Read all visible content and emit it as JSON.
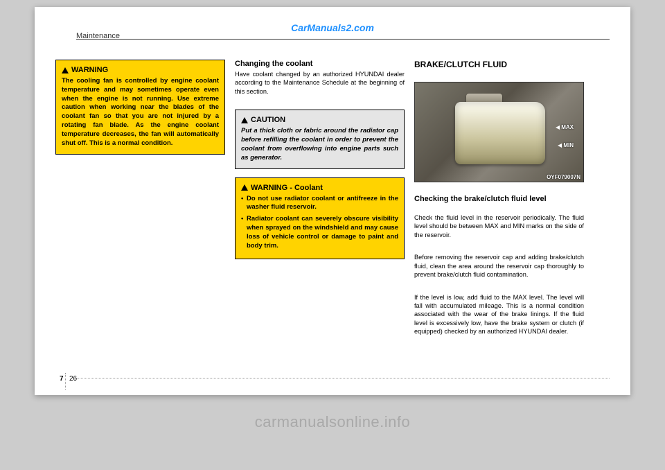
{
  "brand_url": "CarManuals2.com",
  "section_label": "Maintenance",
  "page_num_chapter": "7",
  "page_num_page": "26",
  "col1": {
    "warning1": {
      "title": "WARNING",
      "body": "The cooling fan is controlled by engine coolant temperature and may sometimes operate even when the engine is not running. Use extreme caution when working near the blades of the coolant fan so that you are not injured by a rotating fan blade. As the engine coolant temperature decreases, the fan will automatically shut off. This is a normal condition."
    }
  },
  "col2": {
    "changing_heading": "Changing the coolant",
    "changing_body": "Have coolant changed by an authorized HYUNDAI dealer according to the Maintenance Schedule at the beginning of this section.",
    "caution": {
      "title": "CAUTION",
      "body": "Put a thick cloth or fabric around the radiator cap before refilling the coolant in order to prevent the coolant from overflowing into engine parts such as generator."
    },
    "warning_coolant": {
      "title": "WARNING - Coolant",
      "bullet1": "Do not use radiator coolant or antifreeze in the washer fluid reservoir.",
      "bullet2": "Radiator coolant can severely obscure visibility when sprayed on the windshield and may cause loss of vehicle control or damage to paint and body trim."
    }
  },
  "col3": {
    "section_title": "BRAKE/CLUTCH FLUID",
    "photo": {
      "max": "MAX",
      "min": "MIN",
      "code": "OYF079007N"
    },
    "check_heading": "Checking the brake/clutch fluid level",
    "p1": "Check the fluid level in the reservoir periodically. The fluid level should be between MAX and MIN marks on the side of the reservoir.",
    "p2": "Before removing the reservoir cap and adding brake/clutch fluid, clean the area around the reservoir cap thoroughly to prevent brake/clutch fluid contamination.",
    "p3": "If the level is low, add fluid to the MAX level. The level will fall with accumulated mileage. This is a normal condition associated with the wear of the brake linings. If the fluid level is excessively low, have the brake system or clutch (if equipped) checked by an authorized HYUNDAI dealer."
  },
  "watermark": "carmanualsonline.info"
}
